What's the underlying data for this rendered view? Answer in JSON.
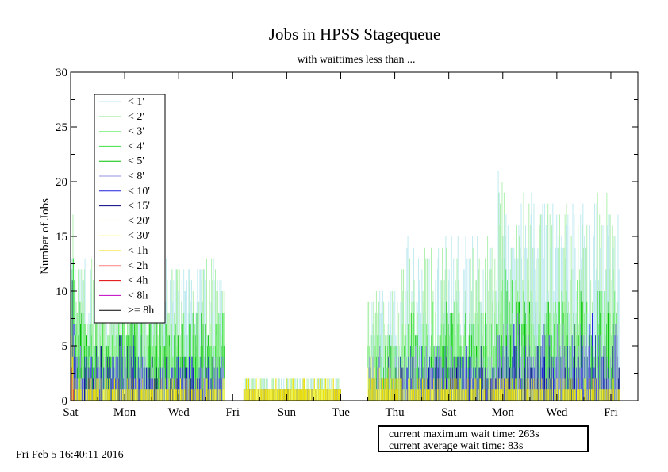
{
  "chart_data": {
    "type": "area",
    "title": "Jobs in HPSS Stagequeue",
    "subtitle": "with waittimes less than ...",
    "xlabel": "",
    "ylabel": "Number of Jobs",
    "ylim": [
      0,
      30
    ],
    "yticks": [
      0,
      5,
      10,
      15,
      20,
      25,
      30
    ],
    "x_range_days": [
      0,
      10.5
    ],
    "x_tick_labels": [
      {
        "label": "Sat",
        "day": 0
      },
      {
        "label": "Mon",
        "day": 1
      },
      {
        "label": "Wed",
        "day": 2
      },
      {
        "label": "Fri",
        "day": 3
      },
      {
        "label": "Sun",
        "day": 4
      },
      {
        "label": "Tue",
        "day": 5
      },
      {
        "label": "Thu",
        "day": 6
      },
      {
        "label": "Sat",
        "day": 7
      },
      {
        "label": "Mon",
        "day": 8
      },
      {
        "label": "Wed",
        "day": 9
      },
      {
        "label": "Fri",
        "day": 10
      }
    ],
    "legend_position": "top-left",
    "series": [
      {
        "name": "< 1'",
        "color": "#bfeaf0"
      },
      {
        "name": "< 2'",
        "color": "#b0f0b0"
      },
      {
        "name": "< 3'",
        "color": "#80f080"
      },
      {
        "name": "< 4'",
        "color": "#40e040"
      },
      {
        "name": "< 5'",
        "color": "#00c000"
      },
      {
        "name": "< 8'",
        "color": "#9090e0"
      },
      {
        "name": "< 10'",
        "color": "#2020e0"
      },
      {
        "name": "< 15'",
        "color": "#000080"
      },
      {
        "name": "< 20'",
        "color": "#fff8b0"
      },
      {
        "name": "< 30'",
        "color": "#ffff50"
      },
      {
        "name": "< 1h",
        "color": "#f0e000"
      },
      {
        "name": "< 2h",
        "color": "#ff8080"
      },
      {
        "name": "< 4h",
        "color": "#e00000"
      },
      {
        "name": "< 8h",
        "color": "#c000c0"
      },
      {
        "name": ">= 8h",
        "color": "#000000"
      }
    ],
    "segments": [
      {
        "x_start": 0.0,
        "x_end": 0.06,
        "total": [
          9,
          19
        ],
        "green": [
          6,
          15
        ],
        "blue": [
          3,
          12
        ],
        "yellow": [
          1,
          8
        ],
        "red": [
          0,
          3
        ]
      },
      {
        "x_start": 0.06,
        "x_end": 0.9,
        "total": [
          3,
          13
        ],
        "green": [
          2,
          9
        ],
        "blue": [
          1,
          5
        ],
        "yellow": [
          0,
          2
        ],
        "red": [
          0,
          0
        ]
      },
      {
        "x_start": 0.9,
        "x_end": 1.35,
        "total": [
          4,
          18
        ],
        "green": [
          3,
          12
        ],
        "blue": [
          1,
          6
        ],
        "yellow": [
          0,
          2
        ],
        "red": [
          0,
          0
        ]
      },
      {
        "x_start": 1.35,
        "x_end": 2.85,
        "total": [
          3,
          13
        ],
        "green": [
          2,
          8
        ],
        "blue": [
          1,
          4
        ],
        "yellow": [
          0,
          2
        ],
        "red": [
          0,
          0
        ]
      },
      {
        "x_start": 3.2,
        "x_end": 5.0,
        "total": [
          1,
          2
        ],
        "green": [
          0,
          0
        ],
        "blue": [
          0,
          1
        ],
        "yellow": [
          1,
          2
        ],
        "red": [
          0,
          0
        ]
      },
      {
        "x_start": 5.5,
        "x_end": 6.1,
        "total": [
          2,
          10
        ],
        "green": [
          1,
          6
        ],
        "blue": [
          1,
          5
        ],
        "yellow": [
          1,
          4
        ],
        "red": [
          0,
          0
        ]
      },
      {
        "x_start": 6.1,
        "x_end": 7.9,
        "total": [
          3,
          15
        ],
        "green": [
          2,
          9
        ],
        "blue": [
          1,
          5
        ],
        "yellow": [
          0,
          2
        ],
        "red": [
          0,
          0
        ]
      },
      {
        "x_start": 7.9,
        "x_end": 8.1,
        "total": [
          6,
          21
        ],
        "green": [
          4,
          13
        ],
        "blue": [
          2,
          8
        ],
        "yellow": [
          0,
          2
        ],
        "red": [
          0,
          0
        ]
      },
      {
        "x_start": 8.1,
        "x_end": 10.15,
        "total": [
          3,
          19
        ],
        "green": [
          2,
          11
        ],
        "blue": [
          1,
          8
        ],
        "yellow": [
          0,
          2
        ],
        "red": [
          0,
          0
        ]
      }
    ]
  },
  "info": {
    "max_wait": "current maximum wait time: 263s",
    "avg_wait": "current average wait time: 83s"
  },
  "timestamp": "Fri Feb  5 16:40:11 2016"
}
